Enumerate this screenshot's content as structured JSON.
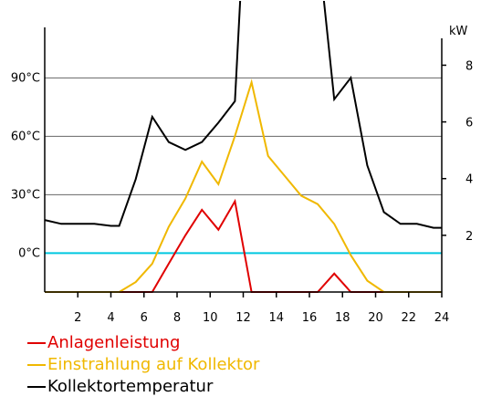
{
  "chart_data": {
    "type": "line",
    "x_ticks": [
      2,
      4,
      6,
      8,
      10,
      12,
      14,
      16,
      18,
      20,
      22,
      24
    ],
    "xlim": [
      0,
      24
    ],
    "left_axis": {
      "ticks": [
        {
          "value": 0,
          "label": "0°C"
        },
        {
          "value": 30,
          "label": "30°C"
        },
        {
          "value": 60,
          "label": "60°C"
        },
        {
          "value": 90,
          "label": "90°C"
        }
      ],
      "ylim": [
        -20,
        130
      ]
    },
    "right_axis": {
      "unit": "kW",
      "ticks": [
        {
          "value": 2,
          "label": "2"
        },
        {
          "value": 4,
          "label": "4"
        },
        {
          "value": 6,
          "label": "6"
        },
        {
          "value": 8,
          "label": "8"
        }
      ],
      "ylim": [
        0,
        10.3
      ]
    },
    "zero_line_color": "#00c8e0",
    "grid": true,
    "legend_position": "bottom-left",
    "series": [
      {
        "name": "Anlagenleistung",
        "color": "#e00000",
        "axis": "right",
        "x": [
          0,
          6.5,
          7.5,
          8.5,
          9.5,
          10.5,
          11.5,
          12.5,
          16.5,
          17.5,
          18.5,
          24
        ],
        "y": [
          0,
          0,
          1,
          2,
          2.9,
          2.2,
          3.2,
          0,
          0,
          0.65,
          0,
          0
        ]
      },
      {
        "name": "Einstrahlung auf Kollektor",
        "color": "#f0b800",
        "axis": "right",
        "x": [
          0,
          4.5,
          5.5,
          6.5,
          7.5,
          8.5,
          9.5,
          10.5,
          11.5,
          12.5,
          13.5,
          14.5,
          15.5,
          16.5,
          17.5,
          18.5,
          19.5,
          20.5,
          24
        ],
        "y": [
          0,
          0,
          0.35,
          1,
          2.3,
          3.3,
          4.6,
          3.8,
          5.5,
          7.4,
          4.8,
          4.1,
          3.4,
          3.1,
          2.4,
          1.3,
          0.4,
          0,
          0
        ]
      },
      {
        "name": "Kollektortemperatur",
        "color": "#000000",
        "axis": "left",
        "x": [
          0,
          1,
          2,
          3,
          4,
          4.5,
          5.5,
          6.5,
          7.5,
          8.5,
          9.5,
          10.5,
          11.5,
          12,
          16.5,
          17.5,
          18.5,
          19.5,
          20.5,
          21.5,
          22.5,
          23.5,
          24
        ],
        "y": [
          17,
          15,
          15,
          15,
          14,
          14,
          38,
          70,
          57,
          53,
          57,
          67,
          78,
          160,
          160,
          79,
          90,
          45,
          21,
          15,
          15,
          13,
          13
        ]
      }
    ]
  }
}
